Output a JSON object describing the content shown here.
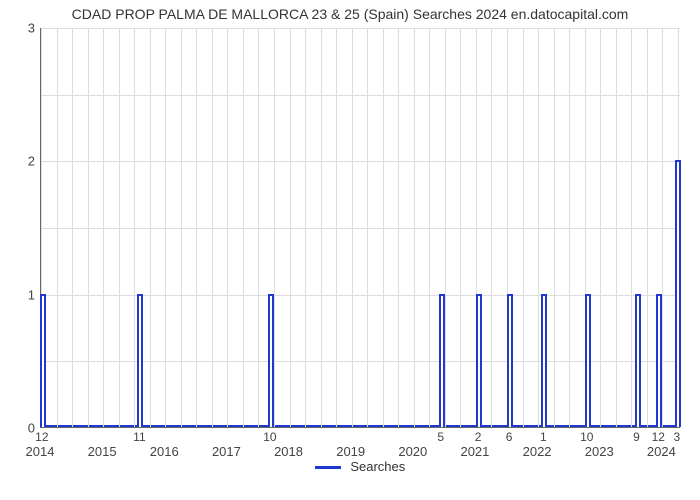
{
  "chart": {
    "type": "line",
    "title": "CDAD PROP PALMA DE MALLORCA 23 & 25 (Spain) Searches 2024 en.datocapital.com",
    "title_fontsize": 14,
    "line_color": "#2038d0",
    "line_width": 2,
    "background_color": "#ffffff",
    "grid_color": "#dddddd",
    "axis_color": "#666666",
    "tick_fontsize": 13,
    "peak_fontsize": 12,
    "x_axis": {
      "min": 2014.0,
      "max": 2024.3,
      "ticks": [
        2014,
        2015,
        2016,
        2017,
        2018,
        2019,
        2020,
        2021,
        2022,
        2023,
        2024
      ],
      "grid_step_months": 3
    },
    "y_axis": {
      "min": 0,
      "max": 3,
      "ticks": [
        0,
        1,
        2,
        3
      ]
    },
    "spikes": [
      {
        "x": 2014.03,
        "value": 1
      },
      {
        "x": 2015.6,
        "value": 1
      },
      {
        "x": 2017.7,
        "value": 1
      },
      {
        "x": 2020.45,
        "value": 1
      },
      {
        "x": 2021.05,
        "value": 1
      },
      {
        "x": 2021.55,
        "value": 1
      },
      {
        "x": 2022.1,
        "value": 1
      },
      {
        "x": 2022.8,
        "value": 1
      },
      {
        "x": 2023.6,
        "value": 1
      },
      {
        "x": 2023.95,
        "value": 1
      },
      {
        "x": 2024.25,
        "value": 2
      }
    ],
    "peak_labels": [
      {
        "x": 2014.03,
        "text": "12"
      },
      {
        "x": 2015.6,
        "text": "11"
      },
      {
        "x": 2017.7,
        "text": "10"
      },
      {
        "x": 2020.45,
        "text": "5"
      },
      {
        "x": 2021.05,
        "text": "2"
      },
      {
        "x": 2021.55,
        "text": "6"
      },
      {
        "x": 2022.1,
        "text": "1"
      },
      {
        "x": 2022.8,
        "text": "10"
      },
      {
        "x": 2023.6,
        "text": "9"
      },
      {
        "x": 2023.95,
        "text": "12"
      },
      {
        "x": 2024.25,
        "text": "3"
      }
    ],
    "legend": {
      "label": "Searches",
      "color": "#2038d0"
    }
  }
}
